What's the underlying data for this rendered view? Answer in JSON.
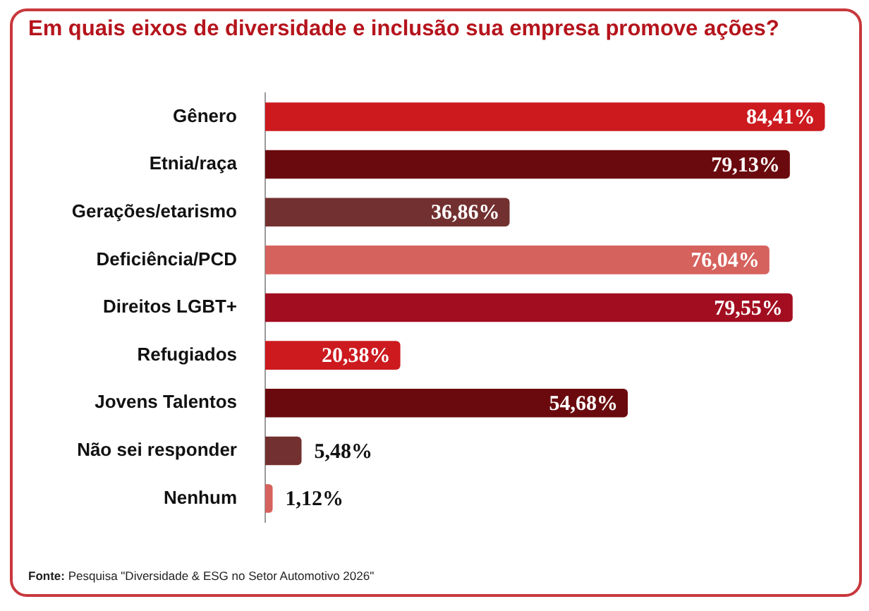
{
  "chart_data": {
    "type": "bar",
    "orientation": "horizontal",
    "title": "Em quais eixos de diversidade e inclusão sua empresa promove ações?",
    "categories": [
      "Gênero",
      "Etnia/raça",
      "Gerações/etarismo",
      "Deficiência/PCD",
      "Direitos LGBT+",
      "Refugiados",
      "Jovens Talentos",
      "Não sei responder",
      "Nenhum"
    ],
    "values": [
      84.41,
      79.13,
      36.86,
      76.04,
      79.55,
      20.38,
      54.68,
      5.48,
      1.12
    ],
    "colors": [
      "#cc1a1f",
      "#6b0a0e",
      "#733030",
      "#d6625d",
      "#a20d20",
      "#cc1a1f",
      "#6b0a0e",
      "#733030",
      "#d6625d"
    ],
    "value_labels": [
      "84,41%",
      "79,13%",
      "36,86%",
      "76,04%",
      "79,55%",
      "20,38%",
      "54,68%",
      "5,48%",
      "1,12%"
    ],
    "xlim": [
      0,
      90
    ],
    "tick_labels": "y",
    "annotations": [
      "Fonte: Pesquisa \"Diversidade & ESG no Setor Automotivo 2026\""
    ]
  }
}
